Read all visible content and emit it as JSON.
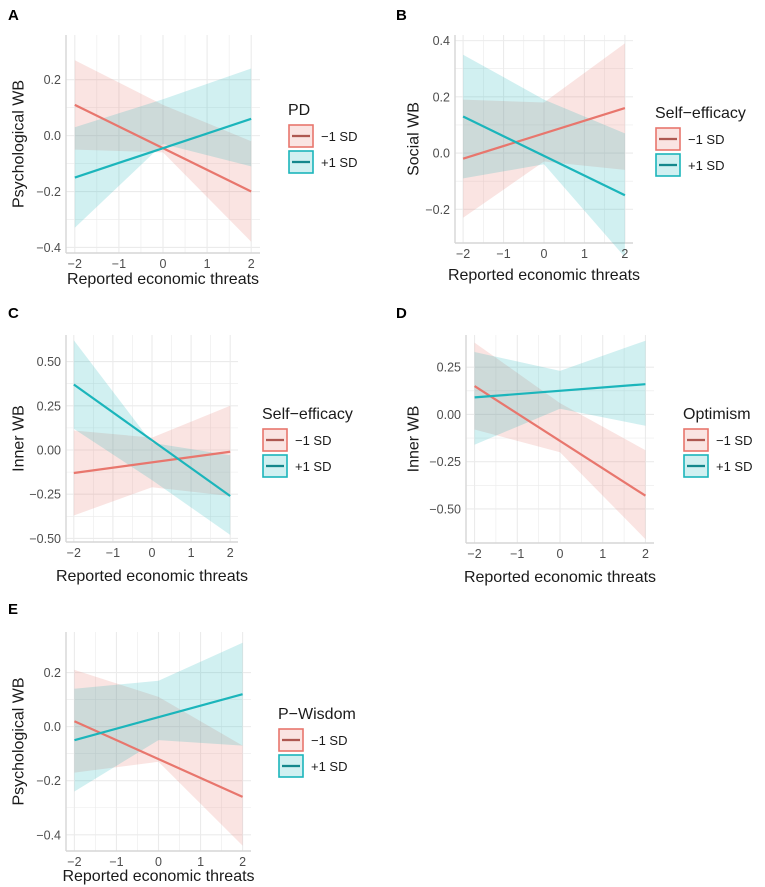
{
  "figure": {
    "colors": {
      "minus": "#e8766d",
      "plus": "#1bb5bb",
      "grid": "#ebebeb",
      "axis": "#d6d6d6"
    }
  },
  "chart_data": [
    {
      "id": "A",
      "type": "line",
      "panel_label": "A",
      "xlabel": "Reported economic threats",
      "ylabel": "Psychological WB",
      "xlim": [
        -2.2,
        2.2
      ],
      "ylim": [
        -0.42,
        0.36
      ],
      "x_ticks": [
        -2,
        -1,
        0,
        1,
        2
      ],
      "x_tick_labels": [
        "−2",
        "−1",
        "0",
        "1",
        "2"
      ],
      "y_ticks": [
        -0.4,
        -0.2,
        0.0,
        0.2
      ],
      "y_tick_labels": [
        "−0.4",
        "−0.2",
        "0.0",
        "0.2"
      ],
      "legend_title": "PD",
      "series": [
        {
          "name": "−1 SD",
          "color": "#e8766d",
          "x": [
            -2,
            2
          ],
          "values": [
            0.11,
            -0.2
          ],
          "ci_lower": [
            -0.05,
            -0.38
          ],
          "ci_upper": [
            0.27,
            -0.02
          ],
          "ci_mid": [
            -0.06,
            0.11
          ]
        },
        {
          "name": "+1 SD",
          "color": "#1bb5bb",
          "x": [
            -2,
            2
          ],
          "values": [
            -0.15,
            0.06
          ],
          "ci_lower": [
            -0.33,
            -0.11
          ],
          "ci_upper": [
            0.03,
            0.24
          ],
          "ci_mid": [
            -0.03,
            0.13
          ]
        }
      ]
    },
    {
      "id": "B",
      "type": "line",
      "panel_label": "B",
      "xlabel": "Reported economic threats",
      "ylabel": "Social WB",
      "xlim": [
        -2.2,
        2.2
      ],
      "ylim": [
        -0.32,
        0.42
      ],
      "x_ticks": [
        -2,
        -1,
        0,
        1,
        2
      ],
      "x_tick_labels": [
        "−2",
        "−1",
        "0",
        "1",
        "2"
      ],
      "y_ticks": [
        -0.2,
        0.0,
        0.2,
        0.4
      ],
      "y_tick_labels": [
        "−0.2",
        "0.0",
        "0.2",
        "0.4"
      ],
      "legend_title": "Self−efficacy",
      "series": [
        {
          "name": "−1 SD",
          "color": "#e8766d",
          "x": [
            -2,
            2
          ],
          "values": [
            -0.02,
            0.16
          ],
          "ci_lower": [
            -0.23,
            -0.06
          ],
          "ci_upper": [
            0.19,
            0.39
          ],
          "ci_mid": [
            -0.03,
            0.18
          ]
        },
        {
          "name": "+1 SD",
          "color": "#1bb5bb",
          "x": [
            -2,
            2
          ],
          "values": [
            0.13,
            -0.15
          ],
          "ci_lower": [
            -0.09,
            -0.37
          ],
          "ci_upper": [
            0.35,
            0.07
          ],
          "ci_mid": [
            -0.04,
            0.19
          ]
        }
      ]
    },
    {
      "id": "C",
      "type": "line",
      "panel_label": "C",
      "xlabel": "Reported economic threats",
      "ylabel": "Inner WB",
      "xlim": [
        -2.2,
        2.2
      ],
      "ylim": [
        -0.52,
        0.65
      ],
      "x_ticks": [
        -2,
        -1,
        0,
        1,
        2
      ],
      "x_tick_labels": [
        "−2",
        "−1",
        "0",
        "1",
        "2"
      ],
      "y_ticks": [
        -0.5,
        -0.25,
        0.0,
        0.25,
        0.5
      ],
      "y_tick_labels": [
        "−0.50",
        "−0.25",
        "0.00",
        "0.25",
        "0.50"
      ],
      "legend_title": "Self−efficacy",
      "series": [
        {
          "name": "−1 SD",
          "color": "#e8766d",
          "x": [
            -2,
            2
          ],
          "values": [
            -0.13,
            -0.01
          ],
          "ci_lower": [
            -0.37,
            -0.26
          ],
          "ci_upper": [
            0.11,
            0.25
          ],
          "ci_mid": [
            -0.21,
            0.07
          ]
        },
        {
          "name": "+1 SD",
          "color": "#1bb5bb",
          "x": [
            -2,
            2
          ],
          "values": [
            0.37,
            -0.26
          ],
          "ci_lower": [
            0.12,
            -0.48
          ],
          "ci_upper": [
            0.62,
            -0.03
          ],
          "ci_mid": [
            -0.17,
            0.04
          ]
        }
      ]
    },
    {
      "id": "D",
      "type": "line",
      "panel_label": "D",
      "xlabel": "Reported economic threats",
      "ylabel": "Inner WB",
      "xlim": [
        -2.2,
        2.2
      ],
      "ylim": [
        -0.68,
        0.42
      ],
      "x_ticks": [
        -2,
        -1,
        0,
        1,
        2
      ],
      "x_tick_labels": [
        "−2",
        "−1",
        "0",
        "1",
        "2"
      ],
      "y_ticks": [
        -0.5,
        -0.25,
        0.0,
        0.25
      ],
      "y_tick_labels": [
        "−0.50",
        "−0.25",
        "0.00",
        "0.25"
      ],
      "legend_title": "Optimism",
      "series": [
        {
          "name": "−1 SD",
          "color": "#e8766d",
          "x": [
            -2,
            2
          ],
          "values": [
            0.15,
            -0.43
          ],
          "ci_lower": [
            -0.08,
            -0.66
          ],
          "ci_upper": [
            0.38,
            -0.19
          ],
          "ci_mid": [
            -0.2,
            0.06
          ]
        },
        {
          "name": "+1 SD",
          "color": "#1bb5bb",
          "x": [
            -2,
            2
          ],
          "values": [
            0.09,
            0.16
          ],
          "ci_lower": [
            -0.16,
            -0.06
          ],
          "ci_upper": [
            0.33,
            0.39
          ],
          "ci_mid": [
            0.03,
            0.23
          ]
        }
      ]
    },
    {
      "id": "E",
      "type": "line",
      "panel_label": "E",
      "xlabel": "Reported economic threats",
      "ylabel": "Psychological WB",
      "xlim": [
        -2.2,
        2.2
      ],
      "ylim": [
        -0.46,
        0.35
      ],
      "x_ticks": [
        -2,
        -1,
        0,
        1,
        2
      ],
      "x_tick_labels": [
        "−2",
        "−1",
        "0",
        "1",
        "2"
      ],
      "y_ticks": [
        -0.4,
        -0.2,
        0.0,
        0.2
      ],
      "y_tick_labels": [
        "−0.4",
        "−0.2",
        "0.0",
        "0.2"
      ],
      "legend_title": "P−Wisdom",
      "series": [
        {
          "name": "−1 SD",
          "color": "#e8766d",
          "x": [
            -2,
            2
          ],
          "values": [
            0.02,
            -0.26
          ],
          "ci_lower": [
            -0.17,
            -0.44
          ],
          "ci_upper": [
            0.21,
            -0.07
          ],
          "ci_mid": [
            -0.13,
            0.11
          ]
        },
        {
          "name": "+1 SD",
          "color": "#1bb5bb",
          "x": [
            -2,
            2
          ],
          "values": [
            -0.05,
            0.12
          ],
          "ci_lower": [
            -0.24,
            -0.07
          ],
          "ci_upper": [
            0.14,
            0.31
          ],
          "ci_mid": [
            -0.05,
            0.17
          ]
        }
      ]
    }
  ]
}
